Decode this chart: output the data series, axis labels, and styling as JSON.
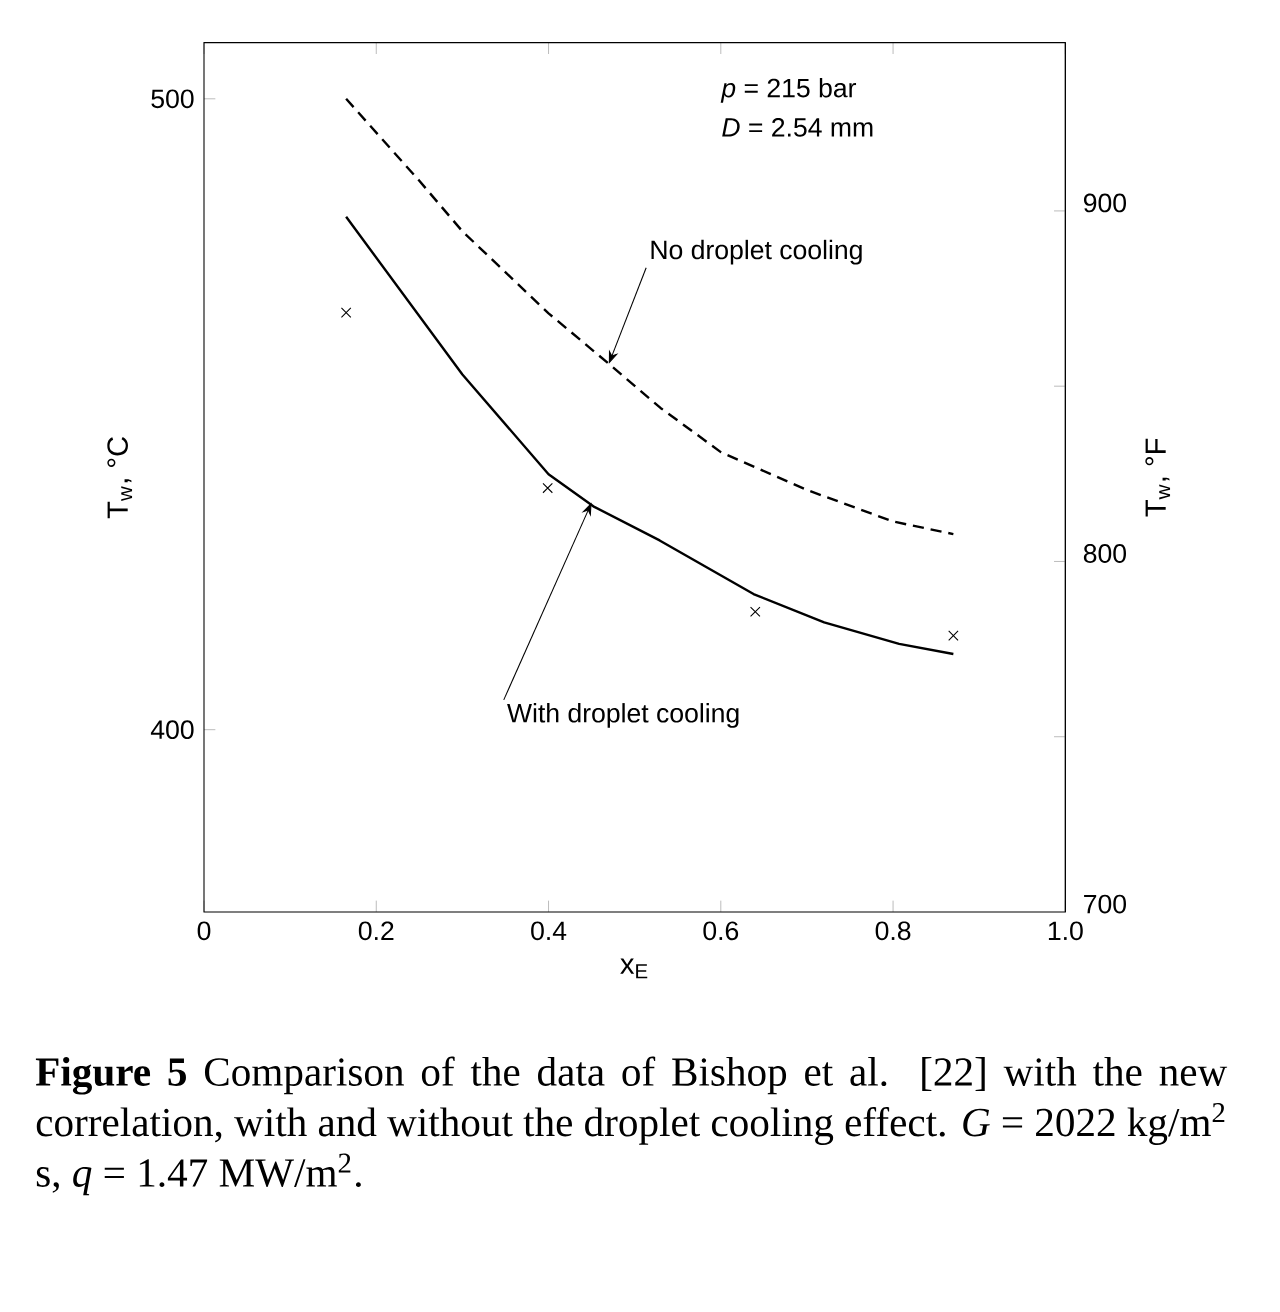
{
  "chart_data": {
    "type": "line",
    "xlabel": "x$_{E}$",
    "ylabel": "T$_{w}$, °C",
    "y2label": "T$_{w}$, °F",
    "xlim": [
      0,
      1.0
    ],
    "xticks": [
      0,
      0.2,
      0.4,
      0.6,
      0.8,
      {
        "value": 1.0,
        "label": "1.0"
      }
    ],
    "ylim": [
      371.1,
      508.9
    ],
    "yticks": [
      400,
      500
    ],
    "y2lim": [
      700,
      948
    ],
    "y2ticks": [
      700,
      {
        "value": 750,
        "label": null
      },
      800,
      {
        "value": 850,
        "label": null
      },
      900
    ],
    "series": [
      {
        "line_style": "dashed",
        "color": "#000000",
        "x": [
          0.165,
          0.25,
          0.3,
          0.4,
          0.47,
          0.53,
          0.6,
          0.7,
          0.8,
          0.87
        ],
        "values": [
          500,
          487,
          479,
          466,
          458,
          451,
          444,
          438,
          433,
          431
        ]
      },
      {
        "line_style": "solid",
        "color": "#000000",
        "x": [
          0.165,
          0.3,
          0.4,
          0.452,
          0.529,
          0.638,
          0.72,
          0.807,
          0.87
        ],
        "values": [
          481.3,
          456.3,
          440.5,
          435.4,
          430,
          421.5,
          417,
          413.6,
          412
        ]
      },
      {
        "type": "scatter",
        "marker": "cross",
        "color": "#000000",
        "x": [
          0.165,
          0.399,
          0.64,
          0.87
        ],
        "values": [
          466.1,
          438.3,
          418.7,
          414.9
        ]
      }
    ],
    "annotations": [
      {
        "text": "No droplet cooling",
        "x": 0.47,
        "y": 458
      },
      {
        "text": "With droplet cooling",
        "x": 0.45,
        "y": 436
      },
      "*p* = 215 bar",
      "*D* = 2.54 mm",
      "**Figure 5** Comparison of the data of Bishop et al. [22] with the new correlation, with and without the droplet cooling effect. *G* = 2022 kg/m$^{2}$ s, *q* = 1.47 MW/m$^{2}$."
    ]
  }
}
